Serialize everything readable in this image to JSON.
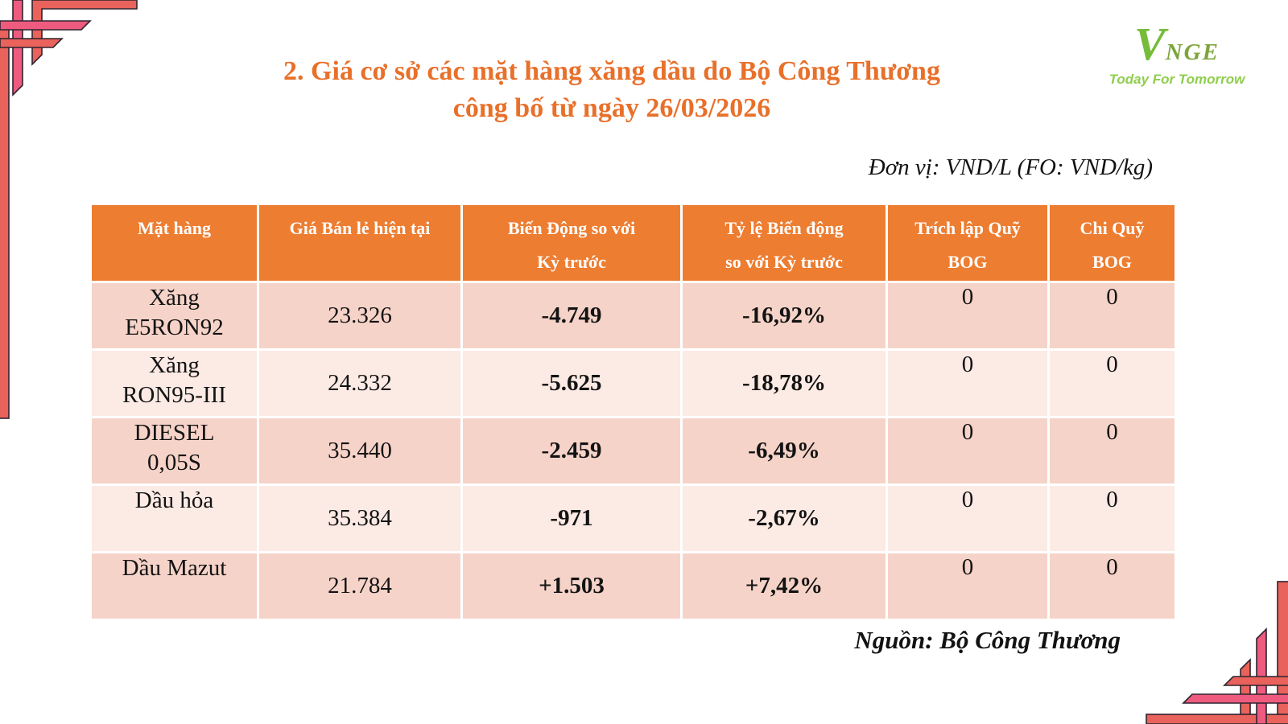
{
  "header": {
    "title_line1": "2. Giá cơ sở các mặt hàng xăng dầu do Bộ Công Thương",
    "title_line2": "công bố từ ngày 26/03/2026"
  },
  "logo": {
    "v_letter": "V",
    "name_rest": "NGE",
    "tagline": "Today For Tomorrow"
  },
  "table": {
    "unit_note": "Đơn vị: VND/L (FO: VND/kg)",
    "columns": [
      {
        "id": "product",
        "lines": [
          "Mặt hàng"
        ]
      },
      {
        "id": "retail-price",
        "lines": [
          "Giá Bán lẻ hiện tại"
        ]
      },
      {
        "id": "change",
        "lines": [
          "Biến Động so với",
          "Kỳ trước"
        ]
      },
      {
        "id": "change-pct",
        "lines": [
          "Tỷ lệ Biến động",
          "so với Kỳ trước"
        ]
      },
      {
        "id": "bog-set-aside",
        "lines": [
          "Trích lập Quỹ",
          "BOG"
        ]
      },
      {
        "id": "bog-spend",
        "lines": [
          "Chi Quỹ",
          "BOG"
        ]
      }
    ],
    "rows": [
      {
        "product_lines": [
          "Xăng",
          "E5RON92"
        ],
        "retail_price": "23.326",
        "change": "-4.749",
        "change_pct": "-16,92%",
        "trend": "down",
        "bog_set_aside": "0",
        "bog_spend": "0"
      },
      {
        "product_lines": [
          "Xăng",
          "RON95-III"
        ],
        "retail_price": "24.332",
        "change": "-5.625",
        "change_pct": "-18,78%",
        "trend": "down",
        "bog_set_aside": "0",
        "bog_spend": "0"
      },
      {
        "product_lines": [
          "DIESEL",
          "0,05S"
        ],
        "retail_price": "35.440",
        "change": "-2.459",
        "change_pct": "-6,49%",
        "trend": "down",
        "bog_set_aside": "0",
        "bog_spend": "0"
      },
      {
        "product_lines": [
          "Dầu hỏa"
        ],
        "retail_price": "35.384",
        "change": "-971",
        "change_pct": "-2,67%",
        "trend": "down",
        "bog_set_aside": "0",
        "bog_spend": "0"
      },
      {
        "product_lines": [
          "Dầu Mazut"
        ],
        "retail_price": "21.784",
        "change": "+1.503",
        "change_pct": "+7,42%",
        "trend": "up",
        "bog_set_aside": "0",
        "bog_spend": "0"
      }
    ]
  },
  "footer": {
    "source_note": "Nguồn: Bộ Công Thương"
  },
  "colors": {
    "title_orange": "#E8702A",
    "table_header_bg": "#ED7D31",
    "row_odd_bg": "#F6D3C8",
    "row_even_bg": "#FCEAE4",
    "decrease_red": "#FF0000",
    "increase_green": "#00B050",
    "ornament_salmon": "#E9625B",
    "ornament_pink": "#EE5B7E",
    "ornament_outline": "#2F2430",
    "logo_green": "#76BC3A",
    "logo_tagline_green": "#8FCE4D"
  }
}
